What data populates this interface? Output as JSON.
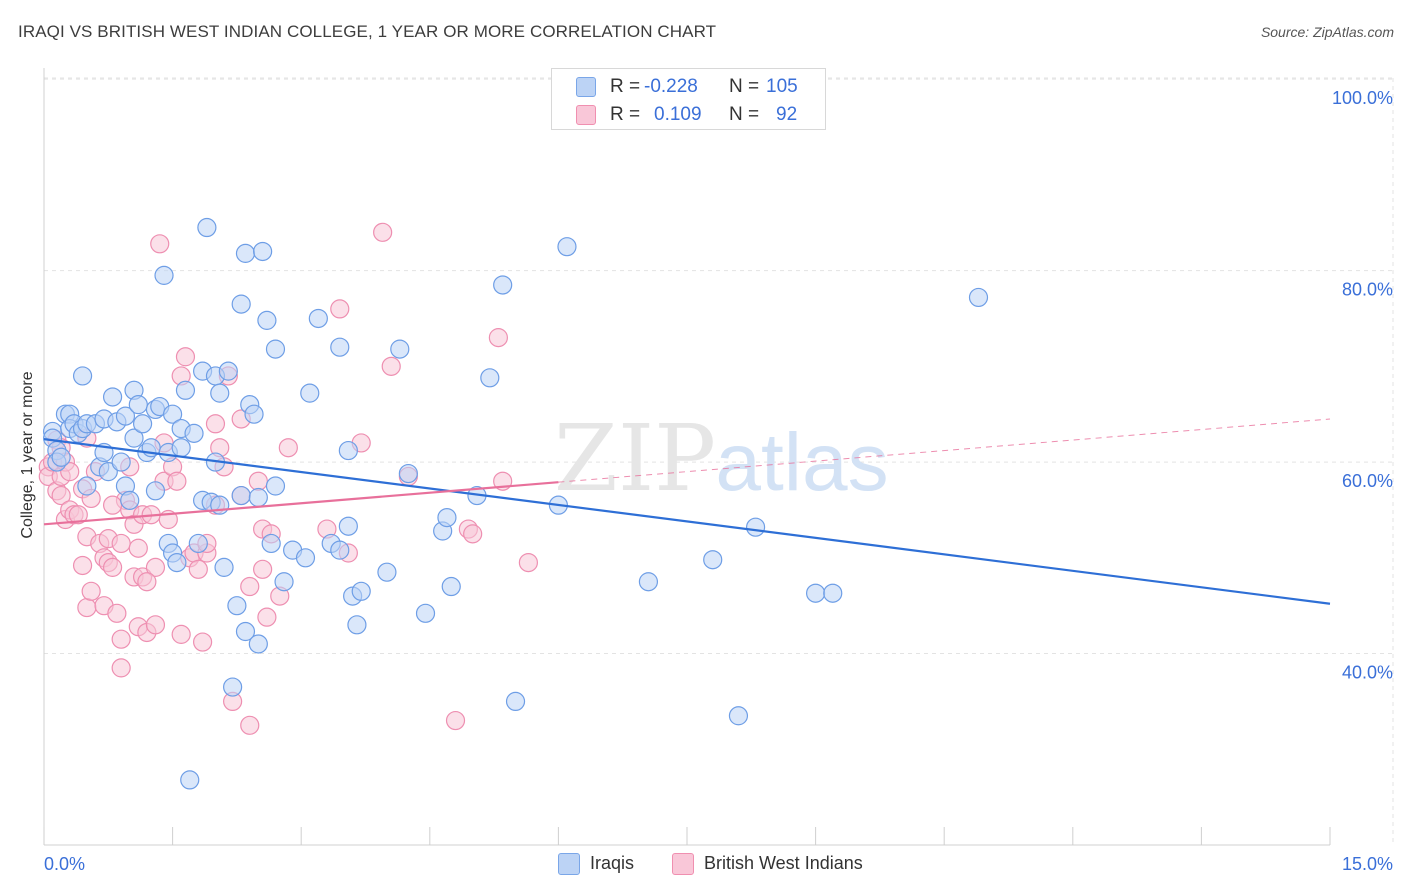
{
  "header": {
    "title": "IRAQI VS BRITISH WEST INDIAN COLLEGE, 1 YEAR OR MORE CORRELATION CHART",
    "source": "Source: ZipAtlas.com"
  },
  "watermark": {
    "zip": "ZIP",
    "atlas": "atlas"
  },
  "legend": {
    "rows": [
      {
        "r_label": "R =",
        "r_value": "-0.228",
        "n_label": "N =",
        "n_value": "105",
        "color": "#7aa6e8",
        "fill": "#bcd3f5"
      },
      {
        "r_label": "R =",
        "r_value": "0.109",
        "n_label": "N =",
        "n_value": "92",
        "color": "#f08fb0",
        "fill": "#f9c7d8"
      }
    ]
  },
  "colors": {
    "iraqis_stroke": "#6e9ee6",
    "iraqis_fill": "#bcd3f5",
    "iraqis_line": "#2e6fd6",
    "bwi_stroke": "#ee8fb1",
    "bwi_fill": "#f8c6d7",
    "bwi_line": "#e8709b",
    "grid": "#e3e3e3",
    "axis_text": "#3a6fd8"
  },
  "chart_data": {
    "type": "scatter",
    "title": "IRAQI VS BRITISH WEST INDIAN COLLEGE, 1 YEAR OR MORE CORRELATION CHART",
    "xlabel": "",
    "ylabel": "College, 1 year or more",
    "xlim": [
      0,
      15
    ],
    "ylim": [
      20,
      102
    ],
    "x_tick_labels": [
      "0.0%",
      "15.0%"
    ],
    "y_ticks": [
      40,
      60,
      80,
      100
    ],
    "y_tick_labels": [
      "40.0%",
      "60.0%",
      "80.0%",
      "100.0%"
    ],
    "grid": true,
    "legend_position": "top-center",
    "series": [
      {
        "name": "Iraqis",
        "r": -0.228,
        "n": 105,
        "trend": {
          "x": [
            0,
            15
          ],
          "y": [
            62.4,
            45.2
          ],
          "style": "solid"
        },
        "points": [
          [
            0.1,
            63.2
          ],
          [
            0.1,
            62.5
          ],
          [
            0.15,
            61.2
          ],
          [
            0.15,
            60.0
          ],
          [
            0.2,
            60.5
          ],
          [
            0.25,
            65.0
          ],
          [
            0.3,
            65.0
          ],
          [
            0.3,
            63.5
          ],
          [
            0.35,
            64.0
          ],
          [
            0.4,
            63.0
          ],
          [
            0.45,
            63.5
          ],
          [
            0.45,
            69.0
          ],
          [
            0.5,
            64.0
          ],
          [
            0.5,
            57.5
          ],
          [
            0.6,
            64.0
          ],
          [
            0.65,
            59.5
          ],
          [
            0.7,
            64.5
          ],
          [
            0.7,
            61.0
          ],
          [
            0.75,
            59.0
          ],
          [
            0.8,
            66.8
          ],
          [
            0.85,
            64.2
          ],
          [
            0.9,
            60.0
          ],
          [
            0.95,
            64.8
          ],
          [
            0.95,
            57.5
          ],
          [
            1.0,
            56.0
          ],
          [
            1.05,
            62.5
          ],
          [
            1.05,
            67.5
          ],
          [
            1.1,
            66.0
          ],
          [
            1.15,
            64.0
          ],
          [
            1.2,
            61.0
          ],
          [
            1.25,
            61.5
          ],
          [
            1.3,
            57.0
          ],
          [
            1.3,
            65.5
          ],
          [
            1.35,
            65.8
          ],
          [
            1.4,
            79.5
          ],
          [
            1.45,
            61.0
          ],
          [
            1.45,
            51.5
          ],
          [
            1.5,
            50.5
          ],
          [
            1.5,
            65.0
          ],
          [
            1.55,
            49.5
          ],
          [
            1.6,
            63.5
          ],
          [
            1.6,
            61.5
          ],
          [
            1.65,
            67.5
          ],
          [
            1.7,
            26.8
          ],
          [
            1.75,
            63.0
          ],
          [
            1.8,
            51.5
          ],
          [
            1.85,
            69.5
          ],
          [
            1.85,
            56.0
          ],
          [
            1.9,
            84.5
          ],
          [
            1.95,
            55.8
          ],
          [
            2.0,
            69.0
          ],
          [
            2.0,
            60.0
          ],
          [
            2.05,
            67.2
          ],
          [
            2.05,
            55.5
          ],
          [
            2.1,
            49.0
          ],
          [
            2.15,
            69.5
          ],
          [
            2.2,
            36.5
          ],
          [
            2.25,
            45.0
          ],
          [
            2.3,
            56.5
          ],
          [
            2.3,
            76.5
          ],
          [
            2.35,
            42.3
          ],
          [
            2.35,
            81.8
          ],
          [
            2.4,
            66.0
          ],
          [
            2.45,
            65.0
          ],
          [
            2.5,
            56.3
          ],
          [
            2.5,
            41.0
          ],
          [
            2.55,
            82.0
          ],
          [
            2.6,
            74.8
          ],
          [
            2.65,
            51.5
          ],
          [
            2.7,
            57.5
          ],
          [
            2.7,
            71.8
          ],
          [
            2.8,
            47.5
          ],
          [
            2.9,
            50.8
          ],
          [
            3.05,
            50.0
          ],
          [
            3.1,
            67.2
          ],
          [
            3.2,
            75.0
          ],
          [
            3.35,
            51.5
          ],
          [
            3.45,
            72.0
          ],
          [
            3.45,
            50.8
          ],
          [
            3.55,
            53.3
          ],
          [
            3.55,
            61.2
          ],
          [
            3.6,
            46.0
          ],
          [
            3.65,
            43.0
          ],
          [
            3.7,
            46.5
          ],
          [
            4.0,
            48.5
          ],
          [
            4.15,
            71.8
          ],
          [
            4.25,
            58.8
          ],
          [
            4.45,
            44.2
          ],
          [
            4.65,
            52.8
          ],
          [
            4.7,
            54.2
          ],
          [
            4.75,
            47.0
          ],
          [
            5.05,
            56.5
          ],
          [
            5.2,
            68.8
          ],
          [
            5.35,
            78.5
          ],
          [
            5.5,
            35.0
          ],
          [
            6.0,
            55.5
          ],
          [
            6.1,
            82.5
          ],
          [
            7.05,
            47.5
          ],
          [
            7.8,
            49.8
          ],
          [
            8.1,
            33.5
          ],
          [
            8.3,
            53.2
          ],
          [
            9.0,
            46.3
          ],
          [
            9.2,
            46.3
          ],
          [
            10.9,
            77.2
          ]
        ]
      },
      {
        "name": "British West Indians",
        "r": 0.109,
        "n": 92,
        "trend": {
          "x": [
            0,
            15
          ],
          "y": [
            53.5,
            64.5
          ],
          "solid_until_x": 6.0,
          "style": "solid-then-dashed"
        },
        "points": [
          [
            0.05,
            59.5
          ],
          [
            0.05,
            58.5
          ],
          [
            0.1,
            60.0
          ],
          [
            0.15,
            62.3
          ],
          [
            0.15,
            57.0
          ],
          [
            0.2,
            58.5
          ],
          [
            0.2,
            61.5
          ],
          [
            0.2,
            56.5
          ],
          [
            0.25,
            54.0
          ],
          [
            0.25,
            60.0
          ],
          [
            0.3,
            59.0
          ],
          [
            0.3,
            55.0
          ],
          [
            0.35,
            54.5
          ],
          [
            0.4,
            54.5
          ],
          [
            0.45,
            57.2
          ],
          [
            0.45,
            49.2
          ],
          [
            0.5,
            62.5
          ],
          [
            0.5,
            52.2
          ],
          [
            0.5,
            44.8
          ],
          [
            0.55,
            46.5
          ],
          [
            0.55,
            56.2
          ],
          [
            0.6,
            59.0
          ],
          [
            0.65,
            51.5
          ],
          [
            0.7,
            50.0
          ],
          [
            0.7,
            45.0
          ],
          [
            0.75,
            52.0
          ],
          [
            0.75,
            49.5
          ],
          [
            0.8,
            49.0
          ],
          [
            0.85,
            44.2
          ],
          [
            0.9,
            51.5
          ],
          [
            0.9,
            41.5
          ],
          [
            0.9,
            38.5
          ],
          [
            0.95,
            56.0
          ],
          [
            1.0,
            55.0
          ],
          [
            1.0,
            59.5
          ],
          [
            1.05,
            53.5
          ],
          [
            1.05,
            48.0
          ],
          [
            1.1,
            51.0
          ],
          [
            1.1,
            42.8
          ],
          [
            1.15,
            54.5
          ],
          [
            1.15,
            48.0
          ],
          [
            1.2,
            42.2
          ],
          [
            1.25,
            54.5
          ],
          [
            1.3,
            43.0
          ],
          [
            1.3,
            49.0
          ],
          [
            1.35,
            82.8
          ],
          [
            1.4,
            62.0
          ],
          [
            1.4,
            58.0
          ],
          [
            1.45,
            54.0
          ],
          [
            1.5,
            59.5
          ],
          [
            1.55,
            58.0
          ],
          [
            1.6,
            69.0
          ],
          [
            1.6,
            42.0
          ],
          [
            1.65,
            71.0
          ],
          [
            1.7,
            50.0
          ],
          [
            1.75,
            50.5
          ],
          [
            1.8,
            48.8
          ],
          [
            1.85,
            41.2
          ],
          [
            1.9,
            50.5
          ],
          [
            1.9,
            51.5
          ],
          [
            2.0,
            55.5
          ],
          [
            2.0,
            64.0
          ],
          [
            2.05,
            61.5
          ],
          [
            2.1,
            59.5
          ],
          [
            2.15,
            69.0
          ],
          [
            2.2,
            35.0
          ],
          [
            2.3,
            64.5
          ],
          [
            2.3,
            56.5
          ],
          [
            2.4,
            47.0
          ],
          [
            2.4,
            32.5
          ],
          [
            2.5,
            58.0
          ],
          [
            2.55,
            48.8
          ],
          [
            2.55,
            53.0
          ],
          [
            2.6,
            43.8
          ],
          [
            2.65,
            52.5
          ],
          [
            2.75,
            46.0
          ],
          [
            2.85,
            61.5
          ],
          [
            3.3,
            53.0
          ],
          [
            3.45,
            76.0
          ],
          [
            3.55,
            50.5
          ],
          [
            3.7,
            62.0
          ],
          [
            3.95,
            84.0
          ],
          [
            4.05,
            70.0
          ],
          [
            4.25,
            58.5
          ],
          [
            4.8,
            33.0
          ],
          [
            4.95,
            53.0
          ],
          [
            5.0,
            52.5
          ],
          [
            5.3,
            73.0
          ],
          [
            5.35,
            58.0
          ],
          [
            5.65,
            49.5
          ],
          [
            0.8,
            55.5
          ],
          [
            1.2,
            47.5
          ]
        ]
      }
    ]
  },
  "bottom_legend": [
    {
      "label": "Iraqis"
    },
    {
      "label": "British West Indians"
    }
  ]
}
